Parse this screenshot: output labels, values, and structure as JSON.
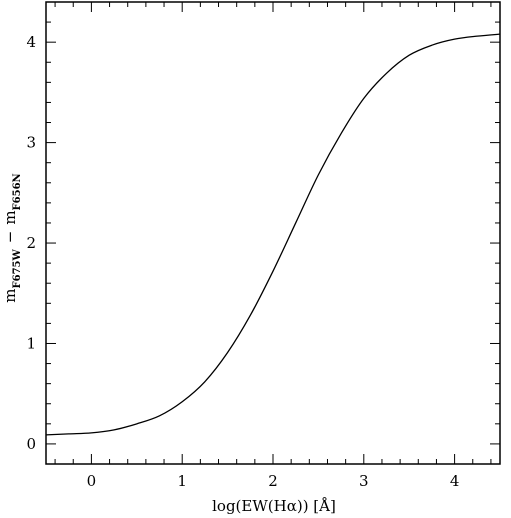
{
  "chart_data": {
    "type": "line",
    "xlabel": "log(EW(Hα)) [Å]",
    "ylabel": {
      "part1": "m",
      "sub1": "F675W",
      "dash": "−",
      "part2": "m",
      "sub2": "F656N"
    },
    "xlim": [
      -0.5,
      4.5
    ],
    "ylim": [
      -0.2,
      4.4
    ],
    "xticks": [
      0,
      1,
      2,
      3,
      4
    ],
    "xtick_labels": [
      "0",
      "1",
      "2",
      "3",
      "4"
    ],
    "yticks": [
      0,
      1,
      2,
      3,
      4
    ],
    "ytick_labels": [
      "0",
      "1",
      "2",
      "3",
      "4"
    ],
    "grid": false,
    "series": [
      {
        "x": [
          -0.5,
          -0.25,
          0.0,
          0.25,
          0.5,
          0.75,
          1.0,
          1.25,
          1.5,
          1.75,
          2.0,
          2.25,
          2.5,
          2.75,
          3.0,
          3.25,
          3.5,
          3.75,
          4.0,
          4.25,
          4.5
        ],
        "values": [
          0.09,
          0.1,
          0.11,
          0.14,
          0.2,
          0.28,
          0.42,
          0.62,
          0.91,
          1.28,
          1.72,
          2.2,
          2.68,
          3.09,
          3.44,
          3.69,
          3.87,
          3.97,
          4.03,
          4.06,
          4.08
        ]
      }
    ]
  }
}
